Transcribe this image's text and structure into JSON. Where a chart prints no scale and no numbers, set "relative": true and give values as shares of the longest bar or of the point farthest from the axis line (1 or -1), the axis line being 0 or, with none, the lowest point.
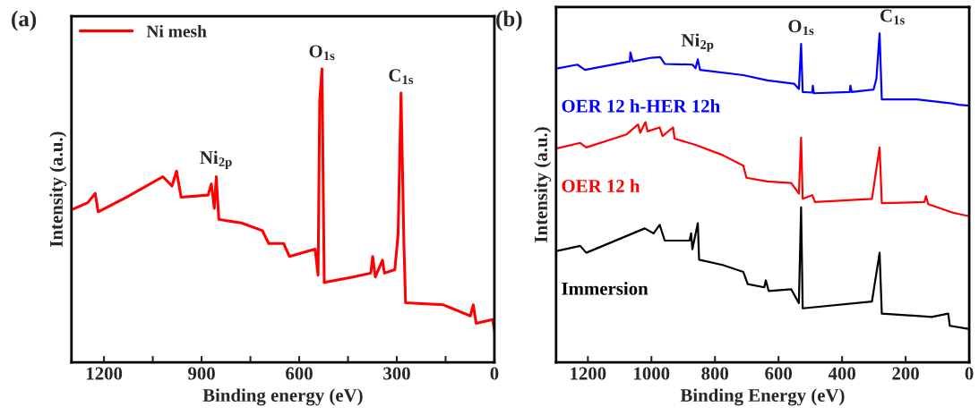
{
  "chart_data": [
    {
      "type": "line",
      "title": "(a)",
      "xlabel": "Binding energy (eV)",
      "ylabel": "Intensity (a.u.)",
      "relative": true,
      "legend": "top left",
      "grid": false,
      "xlim": [
        1300,
        0
      ],
      "xticks": [
        1200,
        {
          "value": 1050,
          "label": null
        },
        900,
        {
          "value": 750,
          "label": null
        },
        600,
        {
          "value": 450,
          "label": null
        },
        300,
        {
          "value": 150,
          "label": null
        },
        0
      ],
      "annotations": [
        {
          "text": "Ni$_{2p}$",
          "x": 855,
          "y": 0.633
        },
        {
          "text": "O$_{1s}$",
          "x": 530,
          "y": 1.0
        },
        {
          "text": "C$_{1s}$",
          "x": 287,
          "y": 0.918
        }
      ],
      "series": [
        {
          "name": "Ni mesh",
          "color": "#ff0000",
          "x": [
            1300,
            1250,
            1227,
            1218,
            1130,
            1019,
            991,
            977,
            963,
            880,
            870,
            861,
            855,
            847,
            778,
            713,
            694,
            648,
            630,
            551,
            542,
            537,
            530,
            523,
            435,
            380,
            374,
            366,
            344,
            338,
            306,
            296,
            287,
            278,
            273,
            157,
            74,
            65,
            56,
            5,
            0
          ],
          "values": [
            0.52,
            0.544,
            0.576,
            0.513,
            0.563,
            0.633,
            0.601,
            0.652,
            0.563,
            0.57,
            0.608,
            0.525,
            0.633,
            0.487,
            0.475,
            0.449,
            0.405,
            0.405,
            0.361,
            0.386,
            0.297,
            0.892,
            1.0,
            0.272,
            0.291,
            0.304,
            0.361,
            0.291,
            0.348,
            0.304,
            0.316,
            0.437,
            0.918,
            0.399,
            0.203,
            0.196,
            0.158,
            0.196,
            0.133,
            0.146,
            0.108
          ]
        }
      ]
    },
    {
      "type": "line",
      "title": "(b)",
      "xlabel": "Binding Energy (eV)",
      "ylabel": "Intensity (a.u.)",
      "relative": true,
      "legend": false,
      "grid": false,
      "xlim": [
        1300,
        0
      ],
      "xticks": [
        1200,
        1000,
        800,
        600,
        400,
        200,
        0
      ],
      "annotations": [
        {
          "text": "Ni$_{2p}$",
          "x": 854,
          "y": 0.921
        },
        {
          "text": "O$_{1s}$",
          "x": 529,
          "y": 0.968
        },
        {
          "text": "C$_{1s}$",
          "x": 282,
          "y": 1.0
        }
      ],
      "series": [
        {
          "name": "OER 12 h-HER 12h",
          "color": "#0000ff",
          "x": [
            1294,
            1233,
            1209,
            1068,
            1066,
            1059,
            1000,
            972,
            958,
            871,
            861,
            854,
            847,
            711,
            635,
            551,
            536,
            529,
            524,
            494,
            492,
            489,
            376,
            374,
            370,
            301,
            292,
            282,
            275,
            165,
            61,
            33,
            0
          ],
          "values": [
            0.894,
            0.905,
            0.889,
            0.915,
            0.942,
            0.915,
            0.926,
            0.928,
            0.907,
            0.905,
            0.894,
            0.921,
            0.889,
            0.873,
            0.857,
            0.847,
            0.831,
            0.968,
            0.822,
            0.82,
            0.841,
            0.818,
            0.822,
            0.841,
            0.822,
            0.829,
            0.862,
            1.0,
            0.799,
            0.799,
            0.788,
            0.783,
            0.78
          ]
        },
        {
          "name": "OER 12 h",
          "color": "#ff0000",
          "x": [
            1294,
            1224,
            1205,
            1078,
            1042,
            1035,
            1019,
            1012,
            974,
            965,
            932,
            927,
            861,
            776,
            711,
            701,
            635,
            560,
            536,
            529,
            524,
            494,
            485,
            306,
            282,
            275,
            141,
            136,
            129,
            52,
            0
          ],
          "values": [
            0.651,
            0.667,
            0.653,
            0.693,
            0.723,
            0.698,
            0.73,
            0.702,
            0.714,
            0.688,
            0.714,
            0.68,
            0.661,
            0.63,
            0.598,
            0.561,
            0.55,
            0.545,
            0.513,
            0.683,
            0.497,
            0.508,
            0.487,
            0.497,
            0.653,
            0.484,
            0.487,
            0.505,
            0.481,
            0.455,
            0.444
          ]
        },
        {
          "name": "Immersion",
          "color": "#000000",
          "x": [
            1294,
            1224,
            1205,
            1021,
            993,
            974,
            958,
            880,
            875,
            871,
            854,
            850,
            776,
            711,
            697,
            645,
            640,
            631,
            560,
            536,
            529,
            524,
            306,
            282,
            275,
            118,
            66,
            61,
            0
          ],
          "values": [
            0.339,
            0.354,
            0.333,
            0.407,
            0.392,
            0.418,
            0.37,
            0.37,
            0.392,
            0.344,
            0.423,
            0.312,
            0.296,
            0.275,
            0.238,
            0.228,
            0.249,
            0.217,
            0.222,
            0.18,
            0.471,
            0.164,
            0.185,
            0.333,
            0.148,
            0.138,
            0.148,
            0.111,
            0.101
          ]
        }
      ]
    }
  ]
}
